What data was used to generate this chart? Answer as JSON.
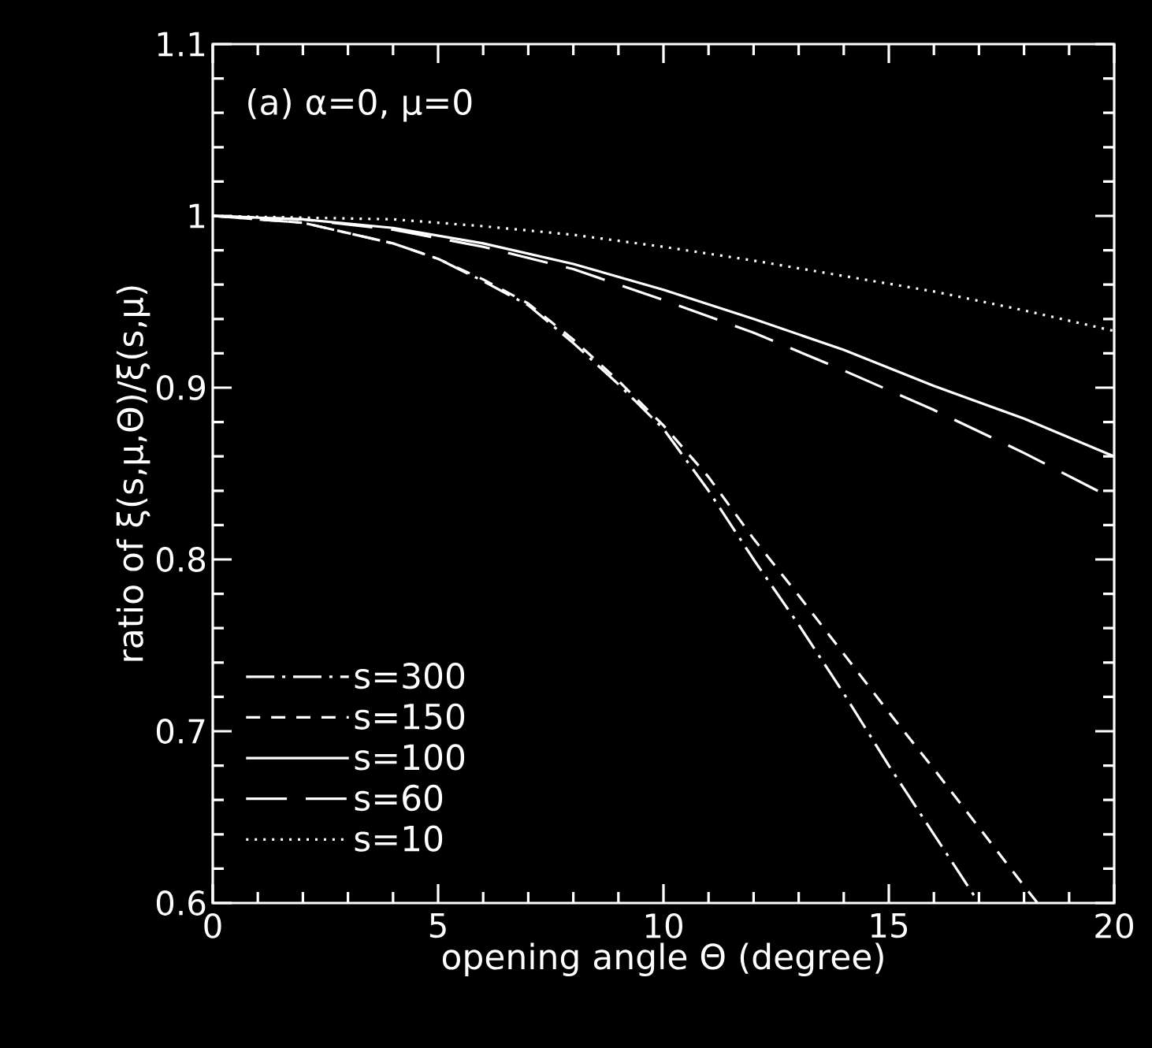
{
  "chart_data": {
    "type": "line",
    "xlabel": "opening angle Θ (degree)",
    "ylabel": "ratio of ξ(s,μ,Θ)/ξ(s,μ)",
    "annotations": [
      "(a) α=0, μ=0"
    ],
    "xlim": [
      0,
      20
    ],
    "xticks": [
      0,
      5,
      10,
      15,
      20
    ],
    "ylim": [
      0.6,
      1.1
    ],
    "yticks": [
      0.6,
      0.7,
      0.8,
      0.9,
      {
        "value": 1,
        "label": "1"
      },
      1.1
    ],
    "grid": false,
    "legend": "bottom left",
    "marker": "none",
    "series": [
      {
        "name": "s=300",
        "color": "#ffffff",
        "line_style": "dashdotted",
        "x": [
          0,
          2,
          4,
          5,
          6,
          7,
          8,
          9,
          10,
          11,
          12,
          13,
          14,
          15,
          16,
          17
        ],
        "values": [
          1.0,
          0.996,
          0.984,
          0.975,
          0.962,
          0.948,
          0.926,
          0.902,
          0.876,
          0.84,
          0.8,
          0.762,
          0.722,
          0.68,
          0.64,
          0.6
        ]
      },
      {
        "name": "s=150",
        "color": "#ffffff",
        "line_style": "dashed",
        "x": [
          0,
          2,
          4,
          5,
          6,
          7,
          8,
          9,
          10,
          11,
          12,
          13,
          14,
          15,
          16,
          17,
          18,
          18.3
        ],
        "values": [
          1.0,
          0.996,
          0.984,
          0.975,
          0.963,
          0.949,
          0.928,
          0.904,
          0.878,
          0.848,
          0.812,
          0.779,
          0.745,
          0.711,
          0.678,
          0.644,
          0.61,
          0.6
        ]
      },
      {
        "name": "s=100",
        "color": "#ffffff",
        "line_style": "solid",
        "x": [
          0,
          2,
          4,
          6,
          8,
          10,
          12,
          14,
          16,
          18,
          20
        ],
        "values": [
          1.0,
          0.998,
          0.993,
          0.984,
          0.972,
          0.957,
          0.94,
          0.922,
          0.901,
          0.882,
          0.86
        ]
      },
      {
        "name": "s=60",
        "color": "#ffffff",
        "line_style": "long dashed",
        "x": [
          0,
          2,
          4,
          6,
          8,
          10,
          12,
          14,
          16,
          18,
          20
        ],
        "values": [
          1.0,
          0.998,
          0.992,
          0.982,
          0.969,
          0.951,
          0.932,
          0.91,
          0.887,
          0.862,
          0.835
        ]
      },
      {
        "name": "s=10",
        "color": "#ffffff",
        "line_style": "dotted",
        "x": [
          0,
          2,
          4,
          6,
          8,
          10,
          12,
          14,
          16,
          18,
          20
        ],
        "values": [
          1.0,
          0.999,
          0.998,
          0.994,
          0.989,
          0.982,
          0.974,
          0.965,
          0.956,
          0.945,
          0.933
        ]
      }
    ]
  }
}
